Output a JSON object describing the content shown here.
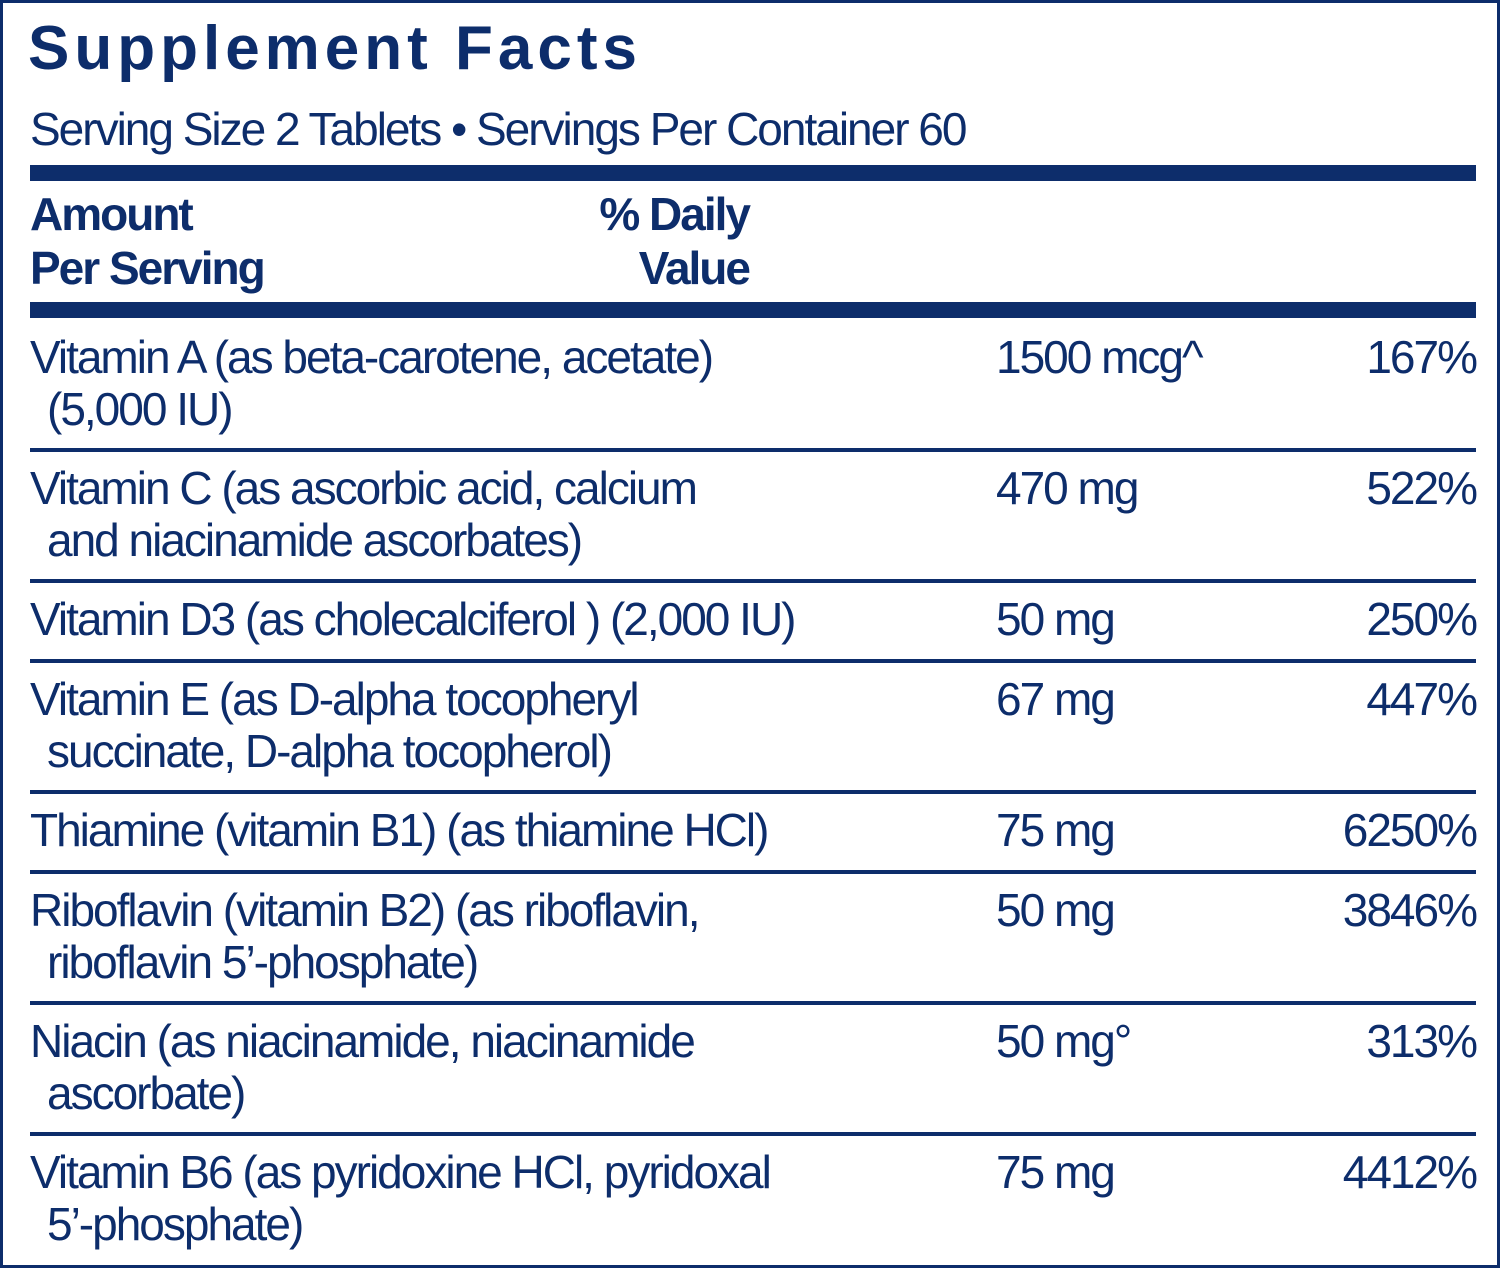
{
  "title": "Supplement Facts",
  "serving_line": "Serving Size 2 Tablets • Servings Per Container 60",
  "header": {
    "amount_line1": "Amount",
    "amount_line2": "Per Serving",
    "dv_line1": "% Daily",
    "dv_line2": "Value"
  },
  "colors": {
    "ink": "#0d2d6b",
    "background": "#ffffff"
  },
  "rows": [
    {
      "line1": "Vitamin A (as beta-carotene, acetate)",
      "line2": "(5,000 IU)",
      "amount": "1500 mcg^",
      "dv": "167%"
    },
    {
      "line1": "Vitamin C (as ascorbic acid, calcium",
      "line2": "and niacinamide ascorbates)",
      "amount": "470 mg",
      "dv": "522%"
    },
    {
      "line1": "Vitamin D3 (as cholecalciferol ) (2,000 IU)",
      "line2": "",
      "amount": "50 mg",
      "dv": "250%"
    },
    {
      "line1": "Vitamin E (as D-alpha tocopheryl",
      "line2": "succinate, D-alpha tocopherol)",
      "amount": "67 mg",
      "dv": "447%"
    },
    {
      "line1": "Thiamine (vitamin B1) (as thiamine HCl)",
      "line2": "",
      "amount": "75 mg",
      "dv": "6250%"
    },
    {
      "line1": "Riboflavin (vitamin B2) (as riboflavin,",
      "line2": "riboflavin 5’-phosphate)",
      "amount": "50 mg",
      "dv": "3846%"
    },
    {
      "line1": "Niacin (as niacinamide, niacinamide",
      "line2": "ascorbate)",
      "amount": "50 mg°",
      "dv": "313%"
    },
    {
      "line1": "Vitamin B6 (as pyridoxine HCl, pyridoxal",
      "line2": "5’-phosphate)",
      "amount": "75 mg",
      "dv": "4412%"
    }
  ]
}
